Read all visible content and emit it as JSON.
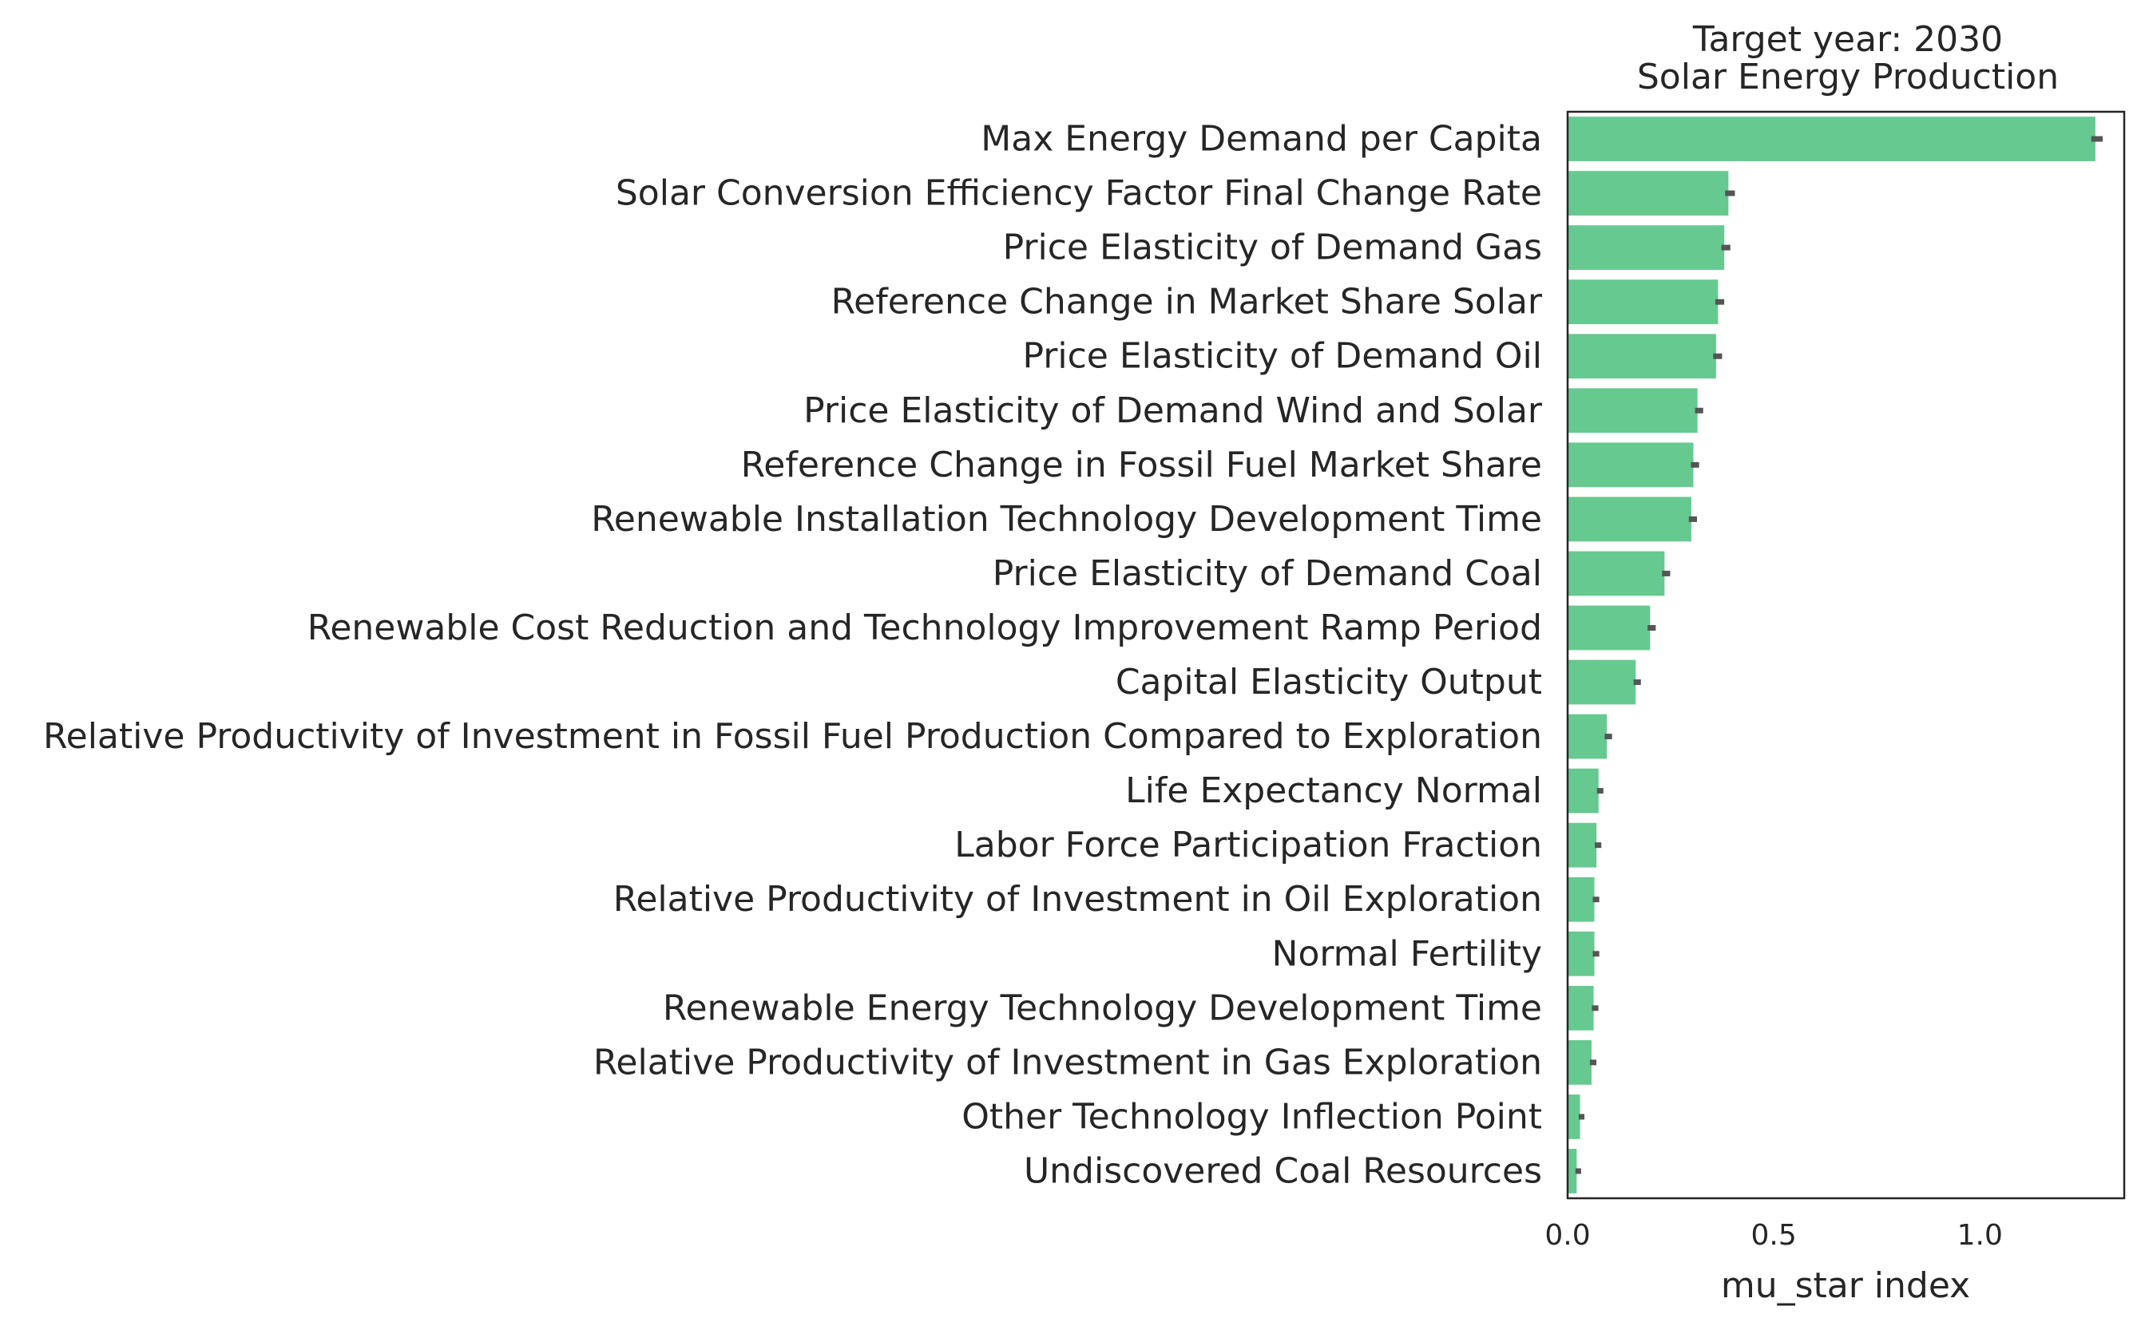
{
  "chart_data": {
    "type": "bar",
    "orientation": "horizontal",
    "title_lines": [
      "Target year: 2030",
      "Solar Energy Production"
    ],
    "xlabel": "mu_star index",
    "ylabel": "",
    "xlim": [
      0,
      1.35
    ],
    "xticks": [
      0.0,
      0.5,
      1.0
    ],
    "xtick_labels": [
      "0.0",
      "0.5",
      "1.0"
    ],
    "grid": false,
    "bar_color": "#66c990",
    "error_color": "#555555",
    "categories": [
      "Max Energy Demand per Capita",
      "Solar Conversion Efficiency Factor Final Change Rate",
      "Price Elasticity of Demand Gas",
      "Reference Change in Market Share Solar",
      "Price Elasticity of Demand Oil",
      "Price Elasticity of Demand Wind and Solar",
      "Reference Change in Fossil Fuel Market Share",
      "Renewable Installation Technology Development Time",
      "Price Elasticity of Demand Coal",
      "Renewable Cost Reduction and Technology Improvement Ramp Period",
      "Capital Elasticity Output",
      "Relative Productivity of Investment in Fossil Fuel Production Compared to Exploration",
      "Life Expectancy Normal",
      "Labor Force Participation Fraction",
      "Relative Productivity of Investment in Oil Exploration",
      "Normal Fertility",
      "Renewable Energy Technology Development Time",
      "Relative Productivity of Investment in Gas Exploration",
      "Other Technology Inflection Point",
      "Undiscovered Coal Resources"
    ],
    "values": [
      1.28,
      0.39,
      0.38,
      0.365,
      0.36,
      0.315,
      0.305,
      0.3,
      0.235,
      0.2,
      0.165,
      0.095,
      0.075,
      0.07,
      0.065,
      0.065,
      0.063,
      0.058,
      0.03,
      0.022
    ],
    "errors": [
      0.01,
      0.008,
      0.007,
      0.007,
      0.007,
      0.006,
      0.006,
      0.006,
      0.006,
      0.006,
      0.005,
      0.005,
      0.004,
      0.004,
      0.004,
      0.004,
      0.004,
      0.004,
      0.003,
      0.003
    ]
  }
}
